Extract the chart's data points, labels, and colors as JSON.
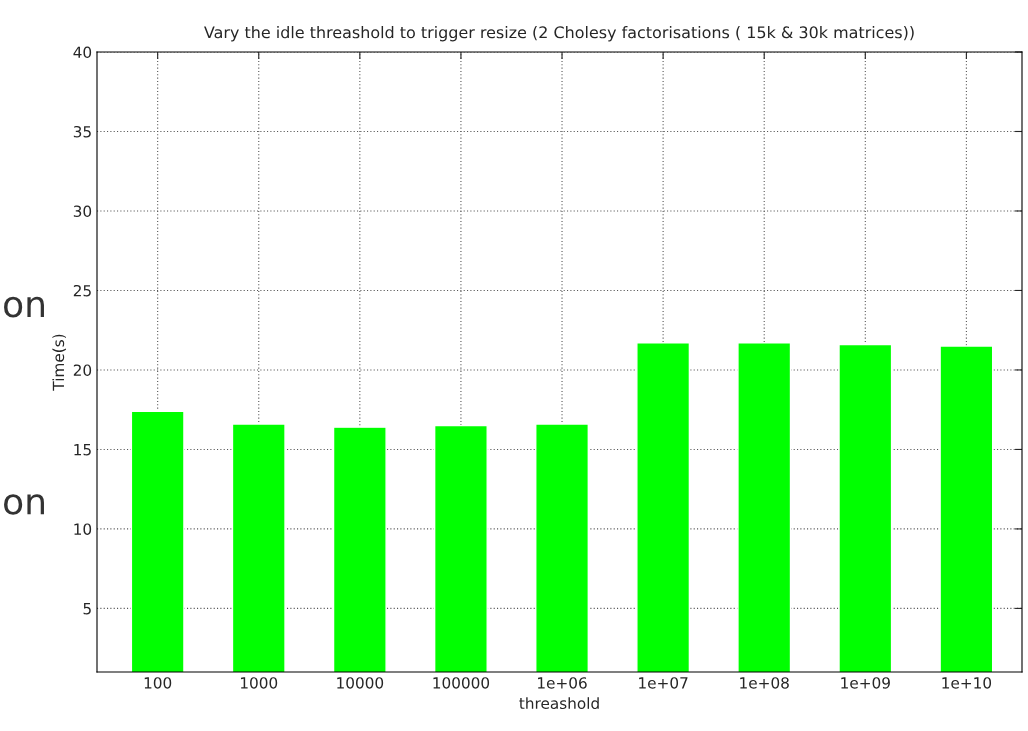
{
  "chart_data": {
    "type": "bar",
    "title": "Vary the idle threashold to trigger resize (2 Cholesy factorisations ( 15k & 30k matrices))",
    "xlabel": "threashold",
    "ylabel": "Time(s)",
    "categories": [
      "100",
      "1000",
      "10000",
      "100000",
      "1e+06",
      "1e+07",
      "1e+08",
      "1e+09",
      "1e+10"
    ],
    "values": [
      17.4,
      16.6,
      16.4,
      16.5,
      16.6,
      21.7,
      21.7,
      21.6,
      21.5
    ],
    "color": "#00ff00",
    "ylim": [
      1,
      40
    ],
    "yticks": [
      5,
      10,
      15,
      20,
      25,
      30,
      35,
      40
    ],
    "grid": true,
    "annotations": [
      "on",
      "on"
    ]
  }
}
